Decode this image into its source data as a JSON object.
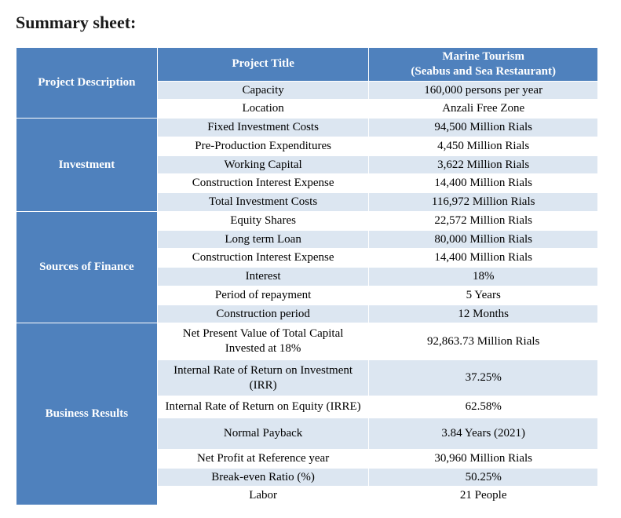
{
  "title": "Summary sheet:",
  "colors": {
    "header_bg": "#4f81bd",
    "header_text": "#ffffff",
    "band_light": "#dce6f1",
    "band_white": "#ffffff",
    "border": "#ffffff"
  },
  "columns": {
    "label": "Project Title",
    "value": "Marine Tourism\n(Seabus and Sea Restaurant)"
  },
  "sections": [
    {
      "name": "Project Description",
      "rows": [
        {
          "label": "Capacity",
          "value": "160,000 persons per year",
          "band": "light"
        },
        {
          "label": "Location",
          "value": "Anzali Free Zone",
          "band": "white"
        }
      ]
    },
    {
      "name": "Investment",
      "rows": [
        {
          "label": "Fixed Investment Costs",
          "value": "94,500 Million Rials",
          "band": "light"
        },
        {
          "label": "Pre-Production Expenditures",
          "value": "4,450 Million Rials",
          "band": "white"
        },
        {
          "label": "Working Capital",
          "value": "3,622 Million Rials",
          "band": "light"
        },
        {
          "label": "Construction Interest Expense",
          "value": "14,400 Million Rials",
          "band": "white"
        },
        {
          "label": "Total Investment Costs",
          "value": "116,972 Million Rials",
          "band": "light"
        }
      ]
    },
    {
      "name": "Sources of Finance",
      "rows": [
        {
          "label": "Equity Shares",
          "value": "22,572 Million Rials",
          "band": "white"
        },
        {
          "label": "Long term Loan",
          "value": "80,000 Million Rials",
          "band": "light"
        },
        {
          "label": "Construction Interest Expense",
          "value": "14,400 Million Rials",
          "band": "white"
        },
        {
          "label": "Interest",
          "value": "18%",
          "band": "light"
        },
        {
          "label": "Period of repayment",
          "value": "5 Years",
          "band": "white"
        },
        {
          "label": "Construction period",
          "value": "12 Months",
          "band": "light"
        }
      ]
    },
    {
      "name": "Business Results",
      "rows": [
        {
          "label": "Net Present Value of Total Capital Invested at 18%",
          "value": "92,863.73 Million Rials",
          "band": "white",
          "two_line": true
        },
        {
          "label": "Internal Rate of Return on Investment (IRR)",
          "value": "37.25%",
          "band": "light",
          "two_line": true
        },
        {
          "label": "Internal Rate of  Return on Equity (IRRE)",
          "value": "62.58%",
          "band": "white",
          "two_line": true
        },
        {
          "label": "Normal Payback",
          "value": "3.84 Years (2021)",
          "band": "light",
          "tall": true
        },
        {
          "label": "Net Profit at Reference year",
          "value": "30,960 Million Rials",
          "band": "white"
        },
        {
          "label": "Break-even Ratio (%)",
          "value": "50.25%",
          "band": "light"
        },
        {
          "label": "Labor",
          "value": "21 People",
          "band": "white"
        }
      ]
    }
  ]
}
